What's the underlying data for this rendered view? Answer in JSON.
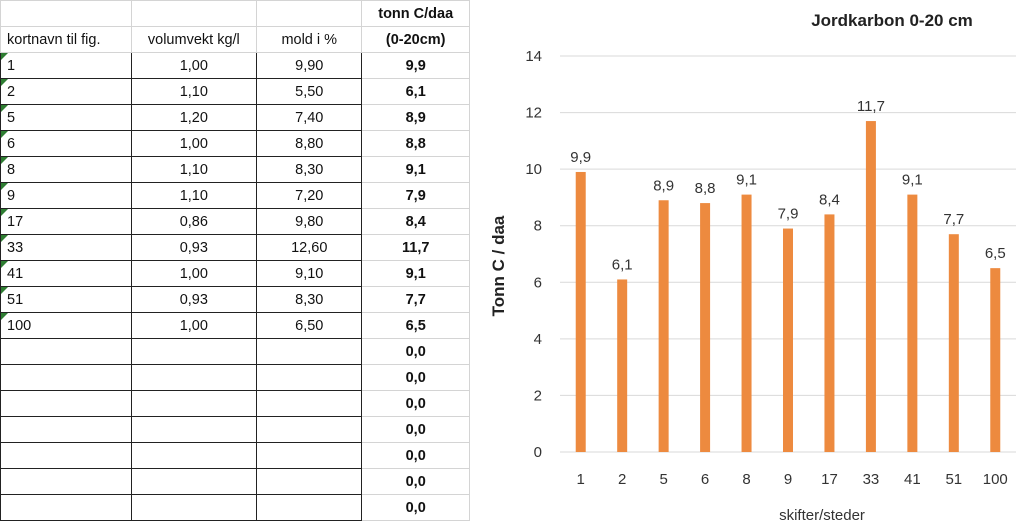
{
  "sheet": {
    "header_row1": [
      "",
      "",
      "",
      "tonn C/daa"
    ],
    "header_row2": [
      "kortnavn til fig.",
      "volumvekt kg/l",
      "mold i %",
      "(0-20cm)"
    ],
    "rows": [
      [
        "1",
        "1,00",
        "9,90",
        "9,9"
      ],
      [
        "2",
        "1,10",
        "5,50",
        "6,1"
      ],
      [
        "5",
        "1,20",
        "7,40",
        "8,9"
      ],
      [
        "6",
        "1,00",
        "8,80",
        "8,8"
      ],
      [
        "8",
        "1,10",
        "8,30",
        "9,1"
      ],
      [
        "9",
        "1,10",
        "7,20",
        "7,9"
      ],
      [
        "17",
        "0,86",
        "9,80",
        "8,4"
      ],
      [
        "33",
        "0,93",
        "12,60",
        "11,7"
      ],
      [
        "41",
        "1,00",
        "9,10",
        "9,1"
      ],
      [
        "51",
        "0,93",
        "8,30",
        "7,7"
      ],
      [
        "100",
        "1,00",
        "6,50",
        "6,5"
      ],
      [
        "",
        "",
        "",
        "0,0"
      ],
      [
        "",
        "",
        "",
        "0,0"
      ],
      [
        "",
        "",
        "",
        "0,0"
      ],
      [
        "",
        "",
        "",
        "0,0"
      ],
      [
        "",
        "",
        "",
        "0,0"
      ],
      [
        "",
        "",
        "",
        "0,0"
      ],
      [
        "",
        "",
        "",
        "0,0"
      ]
    ]
  },
  "chart_data": {
    "type": "bar",
    "title": "Jordkarbon 0-20 cm",
    "xlabel": "skifter/steder",
    "ylabel": "Tonn C / daa",
    "categories": [
      "1",
      "2",
      "5",
      "6",
      "8",
      "9",
      "17",
      "33",
      "41",
      "51",
      "100"
    ],
    "values": [
      9.9,
      6.1,
      8.9,
      8.8,
      9.1,
      7.9,
      8.4,
      11.7,
      9.1,
      7.7,
      6.5
    ],
    "value_labels": [
      "9,9",
      "6,1",
      "8,9",
      "8,8",
      "9,1",
      "7,9",
      "8,4",
      "11,7",
      "9,1",
      "7,7",
      "6,5"
    ],
    "ylim": [
      0,
      14
    ],
    "yticks": [
      0,
      2,
      4,
      6,
      8,
      10,
      12,
      14
    ],
    "grid": true,
    "bar_color": "#ed8a3f",
    "grid_color": "#d9d9d9"
  }
}
